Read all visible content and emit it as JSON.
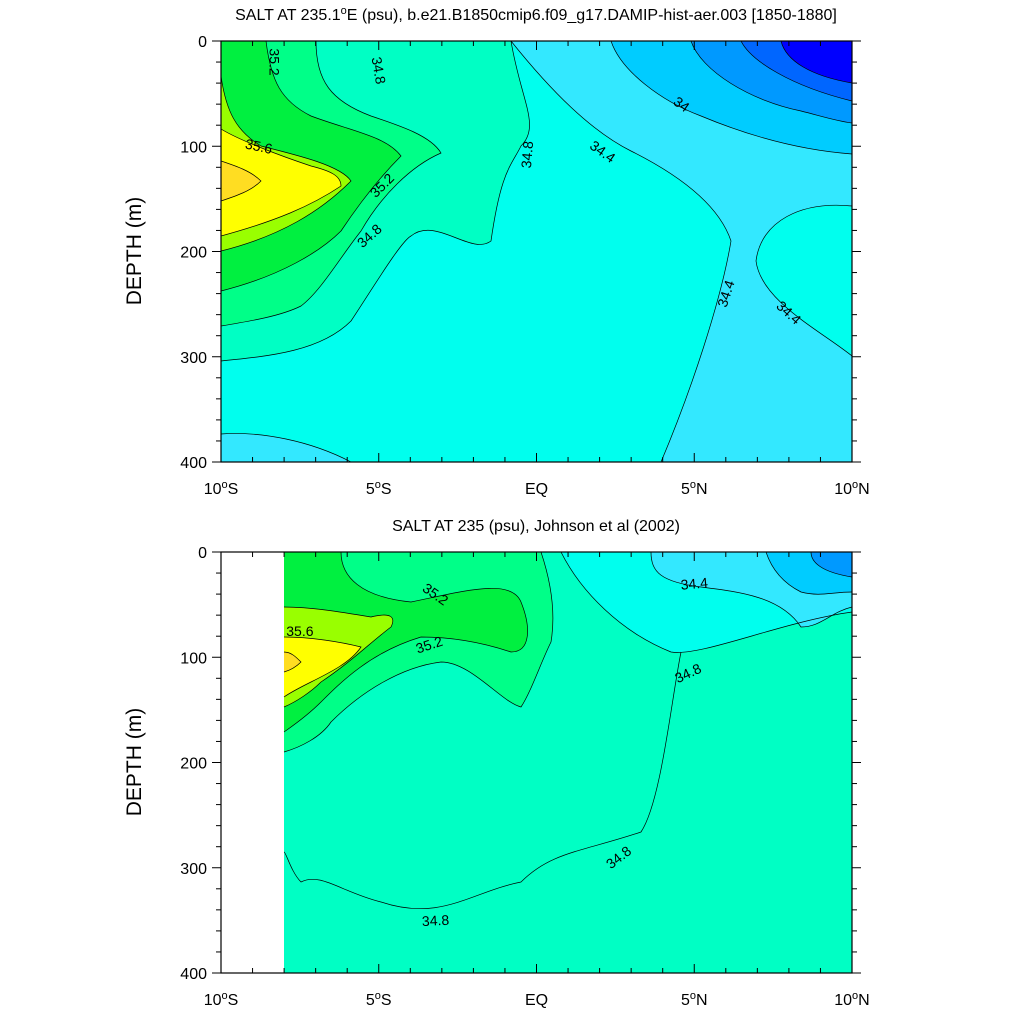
{
  "colors": {
    "s33_8": "#0000ff",
    "s33_9": "#0066ff",
    "s34_0": "#0099ff",
    "s34_2": "#00ccff",
    "s34_4": "#33e8ff",
    "s34_6": "#00ffee",
    "s34_8": "#00ffc4",
    "s35_0": "#00ff88",
    "s35_2": "#00f040",
    "s35_4": "#99ff00",
    "s35_6": "#ffff00",
    "s35_8": "#ffdd22"
  },
  "chart_data": [
    {
      "type": "heatmap",
      "subtype": "filled-contour depth section",
      "title_main": "SALT AT 235.1",
      "title_deg": "o",
      "title_rest": "E (psu), b.e21.B1850cmip6.f09_g17.DAMIP-hist-aer.003 [1850-1880]",
      "ylabel": "DEPTH (m)",
      "xlabel": "",
      "xlim": [
        -10,
        10
      ],
      "ylim": [
        400,
        0
      ],
      "y_ticks": [
        "0",
        "100",
        "200",
        "300",
        "400"
      ],
      "x_ticks": [
        {
          "num": "10",
          "deg": "o",
          "hemi": "S"
        },
        {
          "num": "5",
          "deg": "o",
          "hemi": "S"
        },
        {
          "num": "EQ",
          "deg": "",
          "hemi": ""
        },
        {
          "num": "5",
          "deg": "o",
          "hemi": "N"
        },
        {
          "num": "10",
          "deg": "o",
          "hemi": "N"
        }
      ],
      "contour_labels": [
        {
          "text": "35.2",
          "lat": -8.3,
          "depth": 20,
          "rot": 90
        },
        {
          "text": "34.8",
          "lat": -5.0,
          "depth": 28,
          "rot": 80
        },
        {
          "text": "35.6",
          "lat": -8.8,
          "depth": 100,
          "rot": 12
        },
        {
          "text": "35.2",
          "lat": -4.9,
          "depth": 137,
          "rot": -45
        },
        {
          "text": "34.8",
          "lat": -5.3,
          "depth": 185,
          "rot": -42
        },
        {
          "text": "34.8",
          "lat": -0.3,
          "depth": 108,
          "rot": -85
        },
        {
          "text": "34.4",
          "lat": 2.1,
          "depth": 105,
          "rot": 35
        },
        {
          "text": "34",
          "lat": 4.6,
          "depth": 60,
          "rot": 35
        },
        {
          "text": "34.4",
          "lat": 6.0,
          "depth": 240,
          "rot": -72
        },
        {
          "text": "34.4",
          "lat": 8.0,
          "depth": 258,
          "rot": 42
        }
      ]
    },
    {
      "type": "heatmap",
      "subtype": "filled-contour depth section",
      "title_main": "SALT AT 235 (psu), Johnson et al (2002)",
      "title_deg": "",
      "title_rest": "",
      "ylabel": "DEPTH (m)",
      "xlabel": "",
      "xlim": [
        -10,
        10
      ],
      "ylim": [
        400,
        0
      ],
      "data_lat_range": [
        -8,
        10
      ],
      "y_ticks": [
        "0",
        "100",
        "200",
        "300",
        "400"
      ],
      "x_ticks": [
        {
          "num": "10",
          "deg": "o",
          "hemi": "S"
        },
        {
          "num": "5",
          "deg": "o",
          "hemi": "S"
        },
        {
          "num": "EQ",
          "deg": "",
          "hemi": ""
        },
        {
          "num": "5",
          "deg": "o",
          "hemi": "N"
        },
        {
          "num": "10",
          "deg": "o",
          "hemi": "N"
        }
      ],
      "contour_labels": [
        {
          "text": "35.6",
          "lat": -7.5,
          "depth": 75,
          "rot": 0
        },
        {
          "text": "35.2",
          "lat": -3.2,
          "depth": 40,
          "rot": 35
        },
        {
          "text": "35.2",
          "lat": -3.4,
          "depth": 88,
          "rot": -18
        },
        {
          "text": "34.4",
          "lat": 5.0,
          "depth": 30,
          "rot": -5
        },
        {
          "text": "34.8",
          "lat": 4.8,
          "depth": 115,
          "rot": -25
        },
        {
          "text": "34.8",
          "lat": 2.6,
          "depth": 290,
          "rot": -38
        },
        {
          "text": "34.8",
          "lat": -3.2,
          "depth": 350,
          "rot": -3
        }
      ]
    }
  ]
}
